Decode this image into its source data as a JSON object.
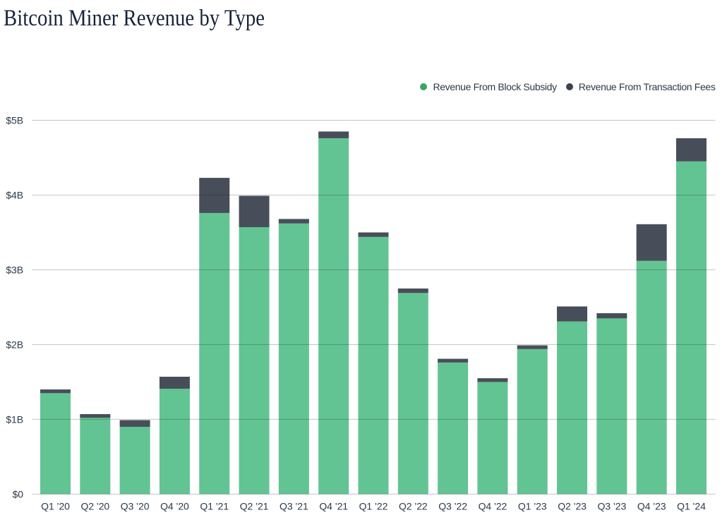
{
  "title": "Bitcoin Miner Revenue by Type",
  "legend": {
    "position": "top-right",
    "items": [
      {
        "label": "Revenue From Block Subsidy",
        "color": "#36a765"
      },
      {
        "label": "Revenue From Transaction Fees",
        "color": "#3d434c"
      }
    ]
  },
  "chart_data": {
    "type": "bar",
    "stacked": true,
    "title": "Bitcoin Miner Revenue by Type",
    "categories": [
      "Q1 ’20",
      "Q2 ’20",
      "Q3 ’20",
      "Q4 ’20",
      "Q1 ’21",
      "Q2 ’21",
      "Q3 ’21",
      "Q4 ’21",
      "Q1 ’22",
      "Q2 ’22",
      "Q3 ’22",
      "Q4 ’22",
      "Q1 ’23",
      "Q2 ’23",
      "Q3 ’23",
      "Q4 ’23",
      "Q1 ’24"
    ],
    "series": [
      {
        "name": "Revenue From Block Subsidy",
        "color": "#62c492",
        "values": [
          1.35,
          1.02,
          0.9,
          1.41,
          3.76,
          3.57,
          3.62,
          4.76,
          3.44,
          2.69,
          1.76,
          1.5,
          1.94,
          2.31,
          2.35,
          3.12,
          4.45
        ]
      },
      {
        "name": "Revenue From Transaction Fees",
        "color": "#474e59",
        "values": [
          0.05,
          0.05,
          0.09,
          0.16,
          0.47,
          0.42,
          0.06,
          0.09,
          0.06,
          0.06,
          0.05,
          0.05,
          0.05,
          0.2,
          0.07,
          0.49,
          0.31
        ]
      }
    ],
    "xlabel": "",
    "ylabel": "",
    "units": "$B",
    "ylim": [
      0,
      5
    ],
    "yticks": [
      {
        "value": 0,
        "label": "$0"
      },
      {
        "value": 1,
        "label": "$1B"
      },
      {
        "value": 2,
        "label": "$2B"
      },
      {
        "value": 3,
        "label": "$3B"
      },
      {
        "value": 4,
        "label": "$4B"
      },
      {
        "value": 5,
        "label": "$5B"
      }
    ],
    "grid": "horizontal",
    "legend_position": "top-right"
  }
}
